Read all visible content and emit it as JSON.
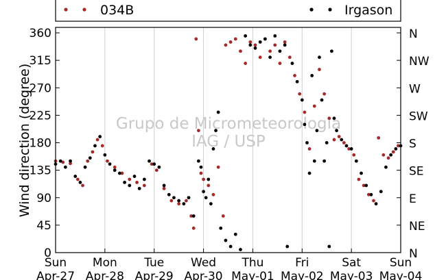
{
  "chart_data": {
    "type": "scatter",
    "ylabel": "Wind direction (degree)",
    "ylim": [
      0,
      360
    ],
    "yticks": [
      0,
      45,
      90,
      135,
      180,
      225,
      270,
      315,
      360
    ],
    "right_ticks": [
      {
        "value": 0,
        "label": "N"
      },
      {
        "value": 45,
        "label": "NE"
      },
      {
        "value": 90,
        "label": "E"
      },
      {
        "value": 135,
        "label": "SE"
      },
      {
        "value": 180,
        "label": "S"
      },
      {
        "value": 225,
        "label": "SW"
      },
      {
        "value": 270,
        "label": "W"
      },
      {
        "value": 315,
        "label": "NW"
      },
      {
        "value": 360,
        "label": "N"
      }
    ],
    "xlim": [
      0,
      7
    ],
    "x_unit": "days since Sun Apr-27 00:00",
    "x_ticks": [
      {
        "day": "Sun",
        "date": "Apr-27"
      },
      {
        "day": "Mon",
        "date": "Apr-28"
      },
      {
        "day": "Tue",
        "date": "Apr-29"
      },
      {
        "day": "Wed",
        "date": "Apr-30"
      },
      {
        "day": "Thu",
        "date": "May-01"
      },
      {
        "day": "Fri",
        "date": "May-02"
      },
      {
        "day": "Sat",
        "date": "May-03"
      },
      {
        "day": "Sun",
        "date": "May-04"
      }
    ],
    "grid": "vertical",
    "legend": "top",
    "watermark": [
      "Grupo de Micrometeorologia",
      "IAG / USP"
    ],
    "series": [
      {
        "name": "034B",
        "color": "#a52a2a",
        "points": [
          [
            0.0,
            150
          ],
          [
            0.15,
            148
          ],
          [
            0.3,
            146
          ],
          [
            0.45,
            120
          ],
          [
            0.55,
            110
          ],
          [
            0.65,
            150
          ],
          [
            0.75,
            165
          ],
          [
            0.85,
            185
          ],
          [
            0.95,
            175
          ],
          [
            1.05,
            150
          ],
          [
            1.2,
            140
          ],
          [
            1.35,
            130
          ],
          [
            1.5,
            120
          ],
          [
            1.65,
            115
          ],
          [
            1.8,
            110
          ],
          [
            1.95,
            145
          ],
          [
            2.05,
            135
          ],
          [
            2.2,
            105
          ],
          [
            2.35,
            85
          ],
          [
            2.5,
            80
          ],
          [
            2.65,
            85
          ],
          [
            2.75,
            60
          ],
          [
            2.8,
            40
          ],
          [
            2.85,
            350
          ],
          [
            2.9,
            200
          ],
          [
            2.95,
            130
          ],
          [
            3.0,
            120
          ],
          [
            3.1,
            110
          ],
          [
            3.2,
            95
          ],
          [
            3.3,
            140
          ],
          [
            3.4,
            60
          ],
          [
            3.45,
            340
          ],
          [
            3.55,
            345
          ],
          [
            3.65,
            350
          ],
          [
            3.75,
            330
          ],
          [
            3.85,
            310
          ],
          [
            3.95,
            345
          ],
          [
            4.05,
            340
          ],
          [
            4.15,
            320
          ],
          [
            4.25,
            350
          ],
          [
            4.35,
            330
          ],
          [
            4.45,
            340
          ],
          [
            4.55,
            310
          ],
          [
            4.65,
            345
          ],
          [
            4.75,
            320
          ],
          [
            4.85,
            290
          ],
          [
            4.95,
            260
          ],
          [
            5.05,
            230
          ],
          [
            5.15,
            170
          ],
          [
            5.25,
            240
          ],
          [
            5.35,
            300
          ],
          [
            5.45,
            260
          ],
          [
            5.55,
            220
          ],
          [
            5.65,
            185
          ],
          [
            5.75,
            190
          ],
          [
            5.85,
            180
          ],
          [
            5.95,
            170
          ],
          [
            6.05,
            160
          ],
          [
            6.15,
            120
          ],
          [
            6.25,
            110
          ],
          [
            6.35,
            95
          ],
          [
            6.45,
            85
          ],
          [
            6.55,
            188
          ],
          [
            6.65,
            160
          ],
          [
            6.75,
            155
          ],
          [
            6.85,
            165
          ],
          [
            6.95,
            175
          ]
        ]
      },
      {
        "name": "Irgason",
        "color": "#000000",
        "points": [
          [
            0.0,
            145
          ],
          [
            0.1,
            150
          ],
          [
            0.2,
            140
          ],
          [
            0.3,
            150
          ],
          [
            0.4,
            125
          ],
          [
            0.5,
            115
          ],
          [
            0.6,
            140
          ],
          [
            0.7,
            155
          ],
          [
            0.8,
            175
          ],
          [
            0.9,
            190
          ],
          [
            1.0,
            160
          ],
          [
            1.1,
            145
          ],
          [
            1.2,
            135
          ],
          [
            1.3,
            130
          ],
          [
            1.4,
            115
          ],
          [
            1.5,
            110
          ],
          [
            1.6,
            125
          ],
          [
            1.7,
            105
          ],
          [
            1.8,
            120
          ],
          [
            1.9,
            150
          ],
          [
            2.0,
            145
          ],
          [
            2.1,
            140
          ],
          [
            2.2,
            110
          ],
          [
            2.3,
            95
          ],
          [
            2.4,
            90
          ],
          [
            2.5,
            85
          ],
          [
            2.6,
            80
          ],
          [
            2.7,
            90
          ],
          [
            2.8,
            60
          ],
          [
            2.9,
            150
          ],
          [
            2.95,
            140
          ],
          [
            3.0,
            100
          ],
          [
            3.05,
            90
          ],
          [
            3.1,
            120
          ],
          [
            3.15,
            80
          ],
          [
            3.2,
            170
          ],
          [
            3.25,
            200
          ],
          [
            3.3,
            230
          ],
          [
            3.35,
            40
          ],
          [
            3.45,
            20
          ],
          [
            3.55,
            10
          ],
          [
            3.65,
            30
          ],
          [
            3.75,
            5
          ],
          [
            3.85,
            355
          ],
          [
            3.95,
            340
          ],
          [
            4.05,
            335
          ],
          [
            4.15,
            345
          ],
          [
            4.25,
            350
          ],
          [
            4.35,
            320
          ],
          [
            4.45,
            355
          ],
          [
            4.55,
            330
          ],
          [
            4.65,
            340
          ],
          [
            4.7,
            10
          ],
          [
            4.8,
            310
          ],
          [
            4.9,
            280
          ],
          [
            5.0,
            250
          ],
          [
            5.05,
            210
          ],
          [
            5.1,
            180
          ],
          [
            5.15,
            130
          ],
          [
            5.2,
            290
          ],
          [
            5.25,
            150
          ],
          [
            5.3,
            200
          ],
          [
            5.35,
            320
          ],
          [
            5.4,
            250
          ],
          [
            5.45,
            150
          ],
          [
            5.5,
            180
          ],
          [
            5.55,
            10
          ],
          [
            5.6,
            330
          ],
          [
            5.65,
            220
          ],
          [
            5.7,
            200
          ],
          [
            5.8,
            185
          ],
          [
            5.9,
            175
          ],
          [
            6.0,
            170
          ],
          [
            6.1,
            150
          ],
          [
            6.2,
            130
          ],
          [
            6.3,
            110
          ],
          [
            6.4,
            95
          ],
          [
            6.5,
            80
          ],
          [
            6.6,
            100
          ],
          [
            6.7,
            140
          ],
          [
            6.8,
            160
          ],
          [
            6.9,
            170
          ],
          [
            7.0,
            175
          ]
        ]
      }
    ]
  }
}
